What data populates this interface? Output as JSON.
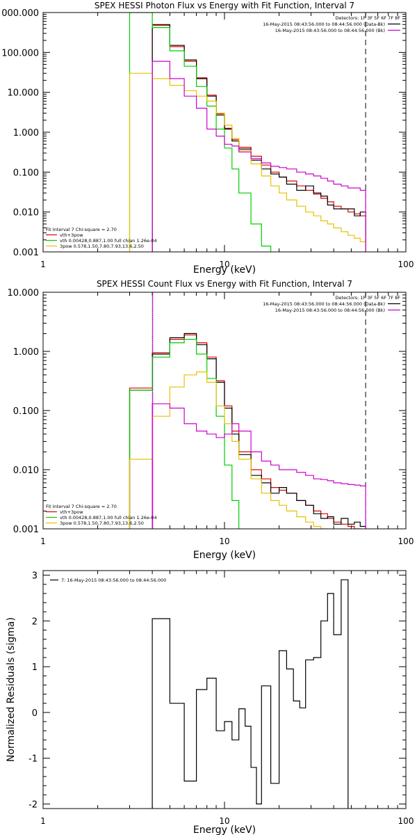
{
  "chart_data": [
    {
      "type": "line",
      "title": "SPEX HESSI Photon Flux vs Energy with Fit Function, Interval 7",
      "xlabel": "Energy (keV)",
      "ylabel": "",
      "x_scale": "log",
      "y_scale": "log",
      "xlim": [
        1,
        100
      ],
      "ylim": [
        0.001,
        1000
      ],
      "x_tick_labels": [
        "1",
        "10",
        "100"
      ],
      "y_tick_labels": [
        "0.001",
        "0.010",
        "0.100",
        "1.000",
        "10.000",
        "100.000",
        "000.000"
      ],
      "legend_top_right": {
        "header": "Detectors: 1F 3F 5F 6F 7F 8F",
        "entries": [
          {
            "label": "16-May-2015 08:43:56.000 to 08:44:56.000 (Data-Bk)",
            "color": "#000000"
          },
          {
            "label": "16-May-2015 08:43:56.000 to 08:44:56.000 (Bk)",
            "color": "#cc00cc"
          }
        ]
      },
      "legend_bottom_left": {
        "header": "Fit Interval 7   Chi-square = 2.70",
        "entries": [
          {
            "label": "vth+3pow",
            "color": "#dd0000"
          },
          {
            "label": "vth 0.00428,0.887,1.00   full chian 1.26e-04",
            "color": "#00cc00"
          },
          {
            "label": "3pow 0.578,1.50,7.80,7.93,13.6,2.50",
            "color": "#e6c200"
          }
        ]
      },
      "vlines": [
        {
          "x": 4.0,
          "style": "dotted",
          "color": "#cc00cc"
        },
        {
          "x": 60.0,
          "style": "dashed",
          "color": "#000000"
        }
      ],
      "energy_edges": [
        3,
        4,
        5,
        6,
        7,
        8,
        9,
        10,
        11,
        12,
        14,
        16,
        18,
        20,
        22,
        25,
        28,
        31,
        34,
        37,
        40,
        44,
        48,
        52,
        56,
        60
      ],
      "series": [
        {
          "name": "vth+3pow",
          "color": "#dd0000",
          "values": [
            null,
            480,
            140,
            60,
            23,
            8.5,
            2.9,
            1.25,
            0.65,
            0.42,
            0.25,
            0.15,
            0.1,
            0.075,
            0.06,
            0.045,
            0.035,
            0.028,
            0.022,
            0.018,
            0.014,
            0.012,
            0.01,
            0.009,
            0.008
          ]
        },
        {
          "name": "Data-Bk",
          "color": "#000000",
          "values": [
            null,
            500,
            150,
            65,
            22,
            8,
            2.7,
            1.2,
            0.6,
            0.38,
            0.2,
            0.12,
            0.09,
            0.075,
            0.05,
            0.035,
            0.045,
            0.03,
            0.025,
            0.015,
            0.012,
            0.012,
            0.012,
            0.008,
            0.01
          ]
        },
        {
          "name": "vth",
          "color": "#00cc00",
          "values": [
            1000,
            420,
            110,
            45,
            14,
            4.5,
            1.2,
            0.4,
            0.12,
            0.03,
            0.005,
            0.0014,
            0.0005,
            null,
            null,
            null,
            null,
            null,
            null,
            null,
            null,
            null,
            null,
            null,
            null
          ]
        },
        {
          "name": "3pow",
          "color": "#e6c200",
          "values": [
            30,
            22,
            15,
            11,
            8,
            6,
            3,
            1.5,
            0.7,
            0.35,
            0.16,
            0.08,
            0.045,
            0.03,
            0.02,
            0.014,
            0.01,
            0.008,
            0.006,
            0.005,
            0.004,
            0.0032,
            0.0026,
            0.0022,
            0.0018
          ]
        },
        {
          "name": "Bk",
          "color": "#cc00cc",
          "values": [
            null,
            60,
            22,
            8,
            4,
            1.2,
            0.8,
            0.5,
            0.45,
            0.32,
            0.22,
            0.17,
            0.14,
            0.13,
            0.12,
            0.1,
            0.09,
            0.08,
            0.07,
            0.06,
            0.05,
            0.045,
            0.04,
            0.04,
            0.035
          ]
        }
      ]
    },
    {
      "type": "line",
      "title": "SPEX HESSI Count Flux vs Energy with Fit Function, Interval 7",
      "xlabel": "Energy (keV)",
      "ylabel": "",
      "x_scale": "log",
      "y_scale": "log",
      "xlim": [
        1,
        100
      ],
      "ylim": [
        0.001,
        10
      ],
      "x_tick_labels": [
        "1",
        "10",
        "100"
      ],
      "y_tick_labels": [
        "0.001",
        "0.010",
        "0.100",
        "1.000",
        "10.000"
      ],
      "legend_top_right": {
        "header": "Detectors: 1F 3F 5F 6F 7F 8F",
        "entries": [
          {
            "label": "16-May-2015 08:43:56.000 to 08:44:56.000 (Data-Bk)",
            "color": "#000000"
          },
          {
            "label": "16-May-2015 08:43:56.000 to 08:44:56.000 (Bk)",
            "color": "#cc00cc"
          }
        ]
      },
      "legend_bottom_left": {
        "header": "Fit Interval 7   Chi-square = 2.70",
        "entries": [
          {
            "label": "vth+3pow",
            "color": "#dd0000"
          },
          {
            "label": "vth 0.00428,0.887,1.00   full chian 1.26e-04",
            "color": "#00cc00"
          },
          {
            "label": "3pow 0.578,1.50,7.80,7.93,13.6,2.50",
            "color": "#e6c200"
          }
        ]
      },
      "vlines": [
        {
          "x": 4.0,
          "style": "dotted",
          "color": "#000000"
        },
        {
          "x": 4.02,
          "style": "solid",
          "color": "#cc00cc"
        },
        {
          "x": 60.0,
          "style": "dashed",
          "color": "#000000"
        }
      ],
      "energy_edges": [
        3,
        4,
        5,
        6,
        7,
        8,
        9,
        10,
        11,
        12,
        14,
        16,
        18,
        20,
        22,
        25,
        28,
        31,
        34,
        37,
        40,
        44,
        48,
        52,
        56,
        60
      ],
      "series": [
        {
          "name": "vth+3pow",
          "color": "#dd0000",
          "values": [
            0.24,
            0.95,
            1.6,
            1.9,
            1.4,
            0.8,
            0.32,
            0.12,
            0.045,
            0.02,
            0.01,
            0.007,
            0.005,
            0.0045,
            0.004,
            0.003,
            0.0025,
            0.002,
            0.0018,
            0.0015,
            0.0013,
            0.0012,
            0.0011,
            0.001,
            0.0009
          ]
        },
        {
          "name": "Data-Bk",
          "color": "#000000",
          "values": [
            0.22,
            0.9,
            1.7,
            2.0,
            1.3,
            0.75,
            0.3,
            0.11,
            0.04,
            0.018,
            0.008,
            0.006,
            0.004,
            0.005,
            0.004,
            0.003,
            0.0025,
            0.0018,
            0.0015,
            0.0016,
            0.0012,
            0.0015,
            0.0012,
            0.0013,
            0.0011
          ]
        },
        {
          "name": "vth",
          "color": "#00cc00",
          "values": [
            0.22,
            0.8,
            1.4,
            1.6,
            0.9,
            0.35,
            0.08,
            0.012,
            0.003,
            0.0009,
            null,
            null,
            null,
            null,
            null,
            null,
            null,
            null,
            null,
            null,
            null,
            null,
            null,
            null,
            null
          ]
        },
        {
          "name": "3pow",
          "color": "#e6c200",
          "values": [
            0.015,
            0.08,
            0.25,
            0.4,
            0.45,
            0.3,
            0.12,
            0.06,
            0.03,
            0.015,
            0.007,
            0.004,
            0.003,
            0.0025,
            0.002,
            0.0016,
            0.0013,
            0.0011,
            0.001,
            0.0009,
            0.0008,
            null,
            null,
            null,
            null
          ]
        },
        {
          "name": "Bk",
          "color": "#cc00cc",
          "values": [
            null,
            0.13,
            0.11,
            0.06,
            0.045,
            0.04,
            0.035,
            0.04,
            0.06,
            0.045,
            0.02,
            0.014,
            0.012,
            0.01,
            0.01,
            0.009,
            0.008,
            0.007,
            0.0068,
            0.0065,
            0.006,
            0.0058,
            0.0056,
            0.0055,
            0.0053
          ]
        }
      ]
    },
    {
      "type": "line",
      "title": "",
      "xlabel": "Energy (keV)",
      "ylabel": "Normalized Residuals (sigma)",
      "x_scale": "log",
      "y_scale": "linear",
      "xlim": [
        1,
        100
      ],
      "ylim": [
        -2.1,
        3.1
      ],
      "x_tick_labels": [
        "1",
        "10",
        "100"
      ],
      "y_tick_labels": [
        "-2",
        "-1",
        "0",
        "1",
        "2",
        "3"
      ],
      "legend_top_left": {
        "entries": [
          {
            "label": "7: 16-May-2015 08:43:56.000 to 08:44:56.000",
            "color": "#000000"
          }
        ]
      },
      "energy_edges": [
        4,
        5,
        6,
        7,
        8,
        9,
        10,
        11,
        12,
        13,
        14,
        15,
        16,
        18,
        20,
        22,
        24,
        26,
        28,
        31,
        34,
        37,
        40,
        44,
        48,
        52,
        56,
        60
      ],
      "series": [
        {
          "name": "",
          "color": "#000000",
          "values": [
            2.05,
            0.2,
            -1.5,
            0.5,
            0.75,
            -0.4,
            -0.2,
            -0.6,
            0.08,
            -0.3,
            -1.2,
            -2.0,
            0.58,
            -1.55,
            1.35,
            0.95,
            0.25,
            0.1,
            1.15,
            1.2,
            2.0,
            2.6,
            1.7,
            2.9,
            null,
            null,
            null
          ]
        }
      ]
    }
  ]
}
